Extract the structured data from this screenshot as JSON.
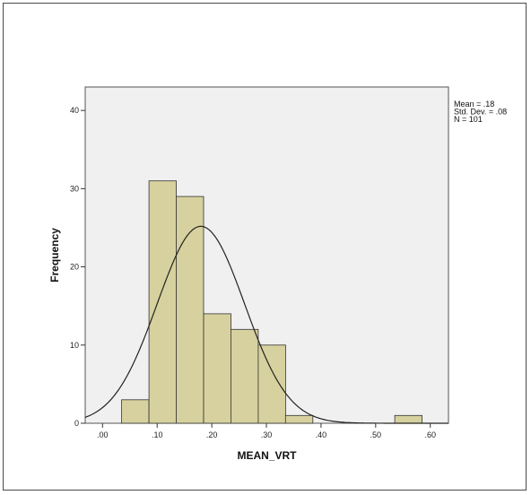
{
  "chart_data": {
    "type": "bar",
    "subtype": "histogram",
    "xlabel": "MEAN_VRT",
    "ylabel": "Frequency",
    "xlim": [
      -0.0317,
      0.6333
    ],
    "ylim": [
      0,
      43
    ],
    "x_ticks": [
      0.0,
      0.1,
      0.2,
      0.3,
      0.4,
      0.5,
      0.6
    ],
    "x_tick_labels": [
      ".00",
      ".10",
      ".20",
      ".30",
      ".40",
      ".50",
      ".60"
    ],
    "y_ticks": [
      0,
      10,
      20,
      30,
      40
    ],
    "y_tick_labels": [
      "0",
      "10",
      "20",
      "30",
      "40"
    ],
    "bins": [
      {
        "x0": 0.035,
        "x1": 0.085,
        "count": 3
      },
      {
        "x0": 0.085,
        "x1": 0.135,
        "count": 31
      },
      {
        "x0": 0.135,
        "x1": 0.185,
        "count": 29
      },
      {
        "x0": 0.185,
        "x1": 0.235,
        "count": 14
      },
      {
        "x0": 0.235,
        "x1": 0.285,
        "count": 12
      },
      {
        "x0": 0.285,
        "x1": 0.335,
        "count": 10
      },
      {
        "x0": 0.335,
        "x1": 0.385,
        "count": 1
      },
      {
        "x0": 0.535,
        "x1": 0.585,
        "count": 1
      }
    ],
    "normal_curve": {
      "mean": 0.18,
      "std": 0.08,
      "n": 101,
      "bin_width": 0.05
    },
    "stats_lines": [
      "Mean = .18",
      "Std. Dev. = .08",
      "N = 101"
    ],
    "legend_position": "top-right",
    "grid": false,
    "colors": {
      "bar_fill": "#d6d19e",
      "bar_stroke": "#333333",
      "plot_bg": "#f0f0f0",
      "curve": "#222222"
    }
  }
}
